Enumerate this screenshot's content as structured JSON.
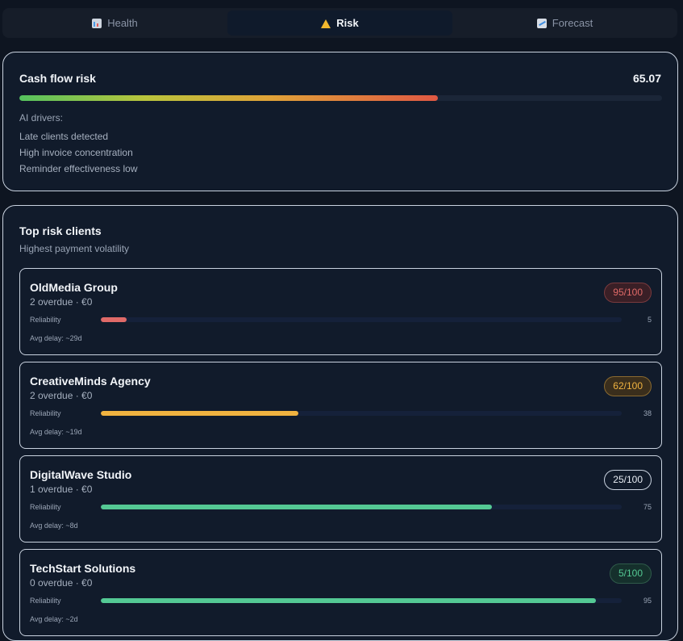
{
  "tabs": [
    {
      "label": "Health",
      "icon": "chart-icon"
    },
    {
      "label": "Risk",
      "icon": "warning-icon"
    },
    {
      "label": "Forecast",
      "icon": "trend-icon"
    }
  ],
  "cash_flow": {
    "title": "Cash flow risk",
    "score": "65.07",
    "score_value": 65.07,
    "drivers_label": "AI drivers:",
    "drivers": [
      "Late clients detected",
      "High invoice concentration",
      "Reminder effectiveness low"
    ]
  },
  "top_risk": {
    "title": "Top risk clients",
    "subtitle": "Highest payment volatility",
    "reliability_label": "Reliability",
    "clients": [
      {
        "name": "OldMedia Group",
        "meta": "2 overdue · €0",
        "score": "95/100",
        "reliability": 5,
        "reliability_text": "5",
        "delay": "Avg delay: ~29d",
        "color": "#e06a68",
        "badge_bg": "#3a1f26",
        "badge_border": "#7a3a3e"
      },
      {
        "name": "CreativeMinds Agency",
        "meta": "2 overdue · €0",
        "score": "62/100",
        "reliability": 38,
        "reliability_text": "38",
        "delay": "Avg delay: ~19d",
        "color": "#f0b340",
        "badge_bg": "#3a2e1c",
        "badge_border": "#8a6a30"
      },
      {
        "name": "DigitalWave Studio",
        "meta": "1 overdue · €0",
        "score": "25/100",
        "reliability": 75,
        "reliability_text": "75",
        "delay": "Avg delay: ~8d",
        "color": "#54c994",
        "badge_bg": "#111b2b",
        "badge_border": "#c9d2df"
      },
      {
        "name": "TechStart Solutions",
        "meta": "0 overdue · €0",
        "score": "5/100",
        "reliability": 95,
        "reliability_text": "95",
        "delay": "Avg delay: ~2d",
        "color": "#54c994",
        "badge_bg": "#15302c",
        "badge_border": "#2f5a4a"
      }
    ]
  }
}
